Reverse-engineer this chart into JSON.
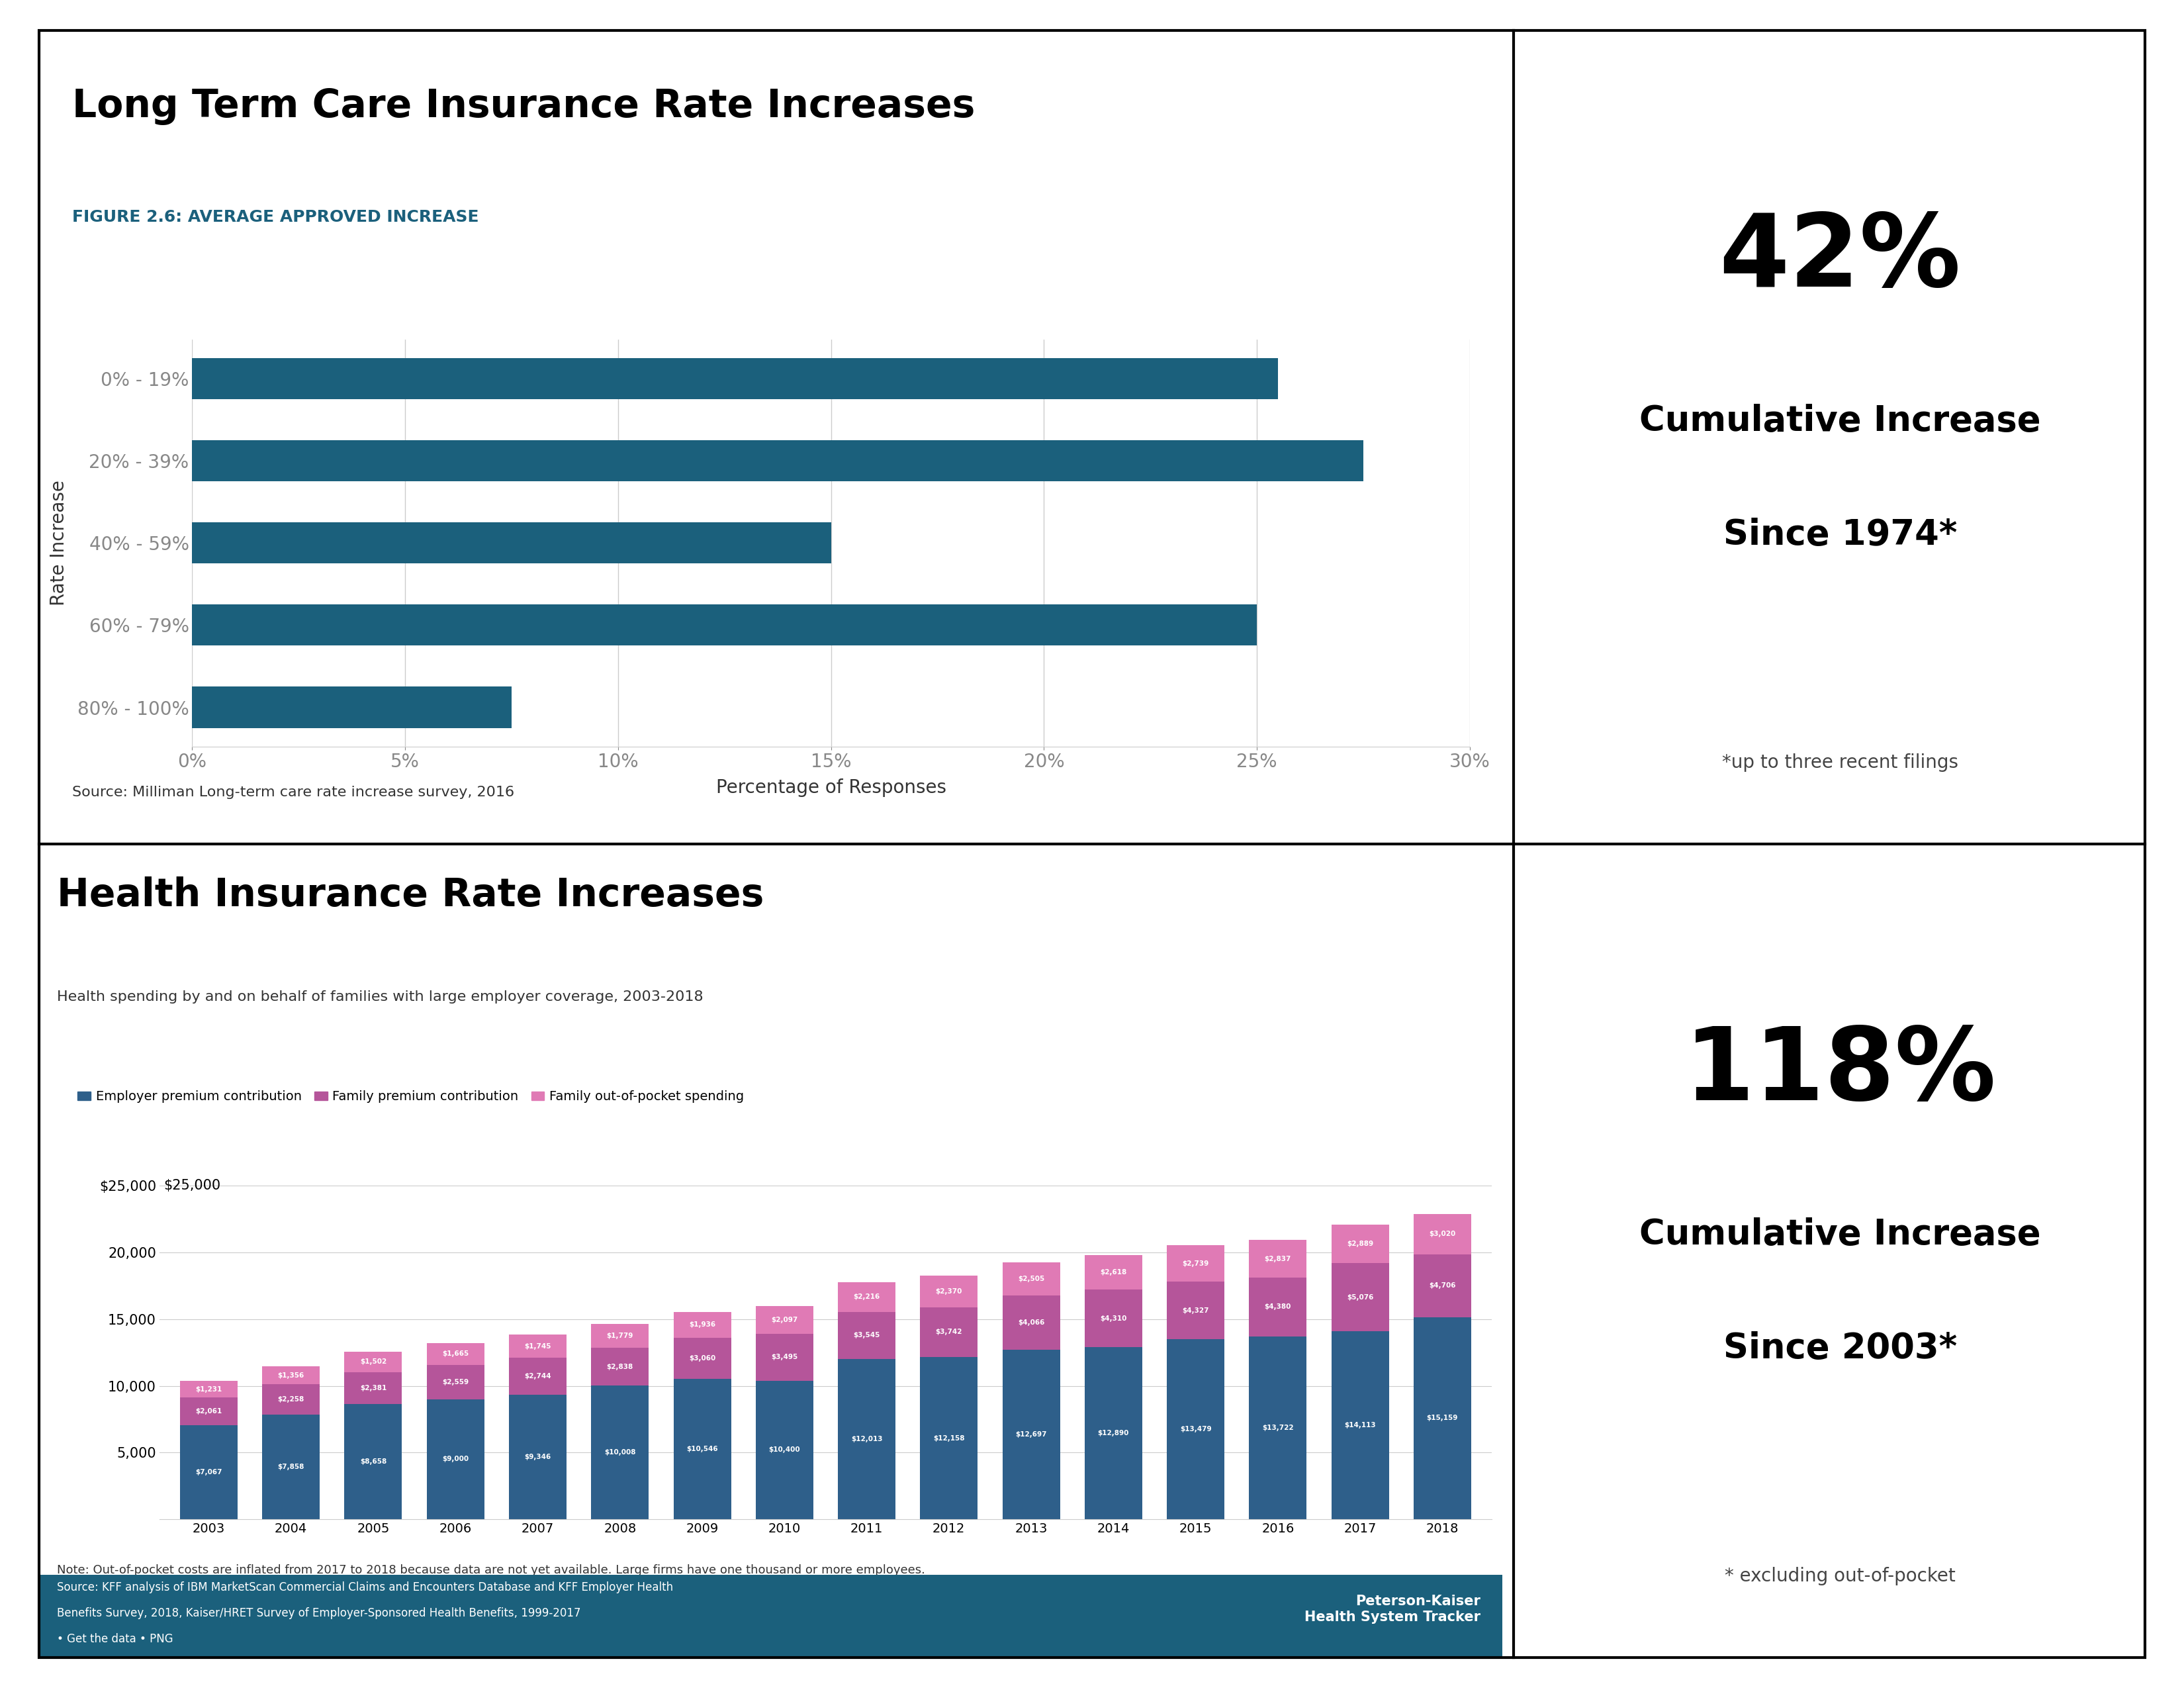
{
  "ltc_title": "Long Term Care Insurance Rate Increases",
  "ltc_subtitle": "FIGURE 2.6: AVERAGE APPROVED INCREASE",
  "ltc_categories": [
    "0% - 19%",
    "20% - 39%",
    "40% - 59%",
    "60% - 79%",
    "80% - 100%"
  ],
  "ltc_values": [
    25.5,
    27.5,
    15.0,
    25.0,
    7.5
  ],
  "ltc_bar_color": "#1b607c",
  "ltc_xlabel": "Percentage of Responses",
  "ltc_ylabel": "Rate Increase",
  "ltc_xlim": [
    0,
    30
  ],
  "ltc_xticks": [
    0,
    5,
    10,
    15,
    20,
    25,
    30
  ],
  "ltc_xtick_labels": [
    "0%",
    "5%",
    "10%",
    "15%",
    "20%",
    "25%",
    "30%"
  ],
  "ltc_source": "Source: Milliman Long-term care rate increase survey, 2016",
  "ltc_stat": "42%",
  "ltc_stat_sub1": "Cumulative Increase",
  "ltc_stat_sub2": "Since 1974*",
  "ltc_stat_note": "*up to three recent filings",
  "health_title": "Health Insurance Rate Increases",
  "health_subtitle": "Health spending by and on behalf of families with large employer coverage, 2003-2018",
  "health_legend": [
    "Employer premium contribution",
    "Family premium contribution",
    "Family out-of-pocket spending"
  ],
  "health_colors": [
    "#2e5f8a",
    "#b5559a",
    "#e07ab5"
  ],
  "health_years": [
    2003,
    2004,
    2005,
    2006,
    2007,
    2008,
    2009,
    2010,
    2011,
    2012,
    2013,
    2014,
    2015,
    2016,
    2017,
    2018
  ],
  "health_employer": [
    7067,
    7858,
    8658,
    9000,
    9346,
    10008,
    10546,
    10400,
    12013,
    12158,
    12697,
    12890,
    13479,
    13722,
    14113,
    15159
  ],
  "health_family": [
    2061,
    2258,
    2381,
    2559,
    2744,
    2838,
    3060,
    3495,
    3545,
    3742,
    4066,
    4310,
    4327,
    4380,
    5076,
    4706
  ],
  "health_oop": [
    1231,
    1356,
    1502,
    1665,
    1745,
    1779,
    1936,
    2097,
    2216,
    2370,
    2505,
    2618,
    2739,
    2837,
    2889,
    3020
  ],
  "health_ylim": [
    0,
    25000
  ],
  "health_yticks": [
    5000,
    10000,
    15000,
    20000,
    25000
  ],
  "health_ytick_labels": [
    "5,000",
    "10,000",
    "15,000",
    "20,000",
    "$25,000"
  ],
  "health_stat": "118%",
  "health_stat_sub1": "Cumulative Increase",
  "health_stat_sub2": "Since 2003*",
  "health_stat_note": "* excluding out-of-pocket",
  "health_source_line1": "Source: KFF analysis of IBM MarketScan Commercial Claims and Encounters Database and KFF Employer Health",
  "health_source_line2": "Benefits Survey, 2018, Kaiser/HRET Survey of Employer-Sponsored Health Benefits, 1999-2017",
  "health_source_line3": "• Get the data • PNG",
  "health_note": "Note: Out-of-pocket costs are inflated from 2017 to 2018 because data are not yet available. Large firms have one thousand or more employees.",
  "health_source_bg": "#1b607c",
  "health_source_label": "Peterson-Kaiser\nHealth System Tracker",
  "background_color": "#ffffff",
  "border_color": "#000000",
  "tick_color": "#888888",
  "grid_color": "#cccccc"
}
